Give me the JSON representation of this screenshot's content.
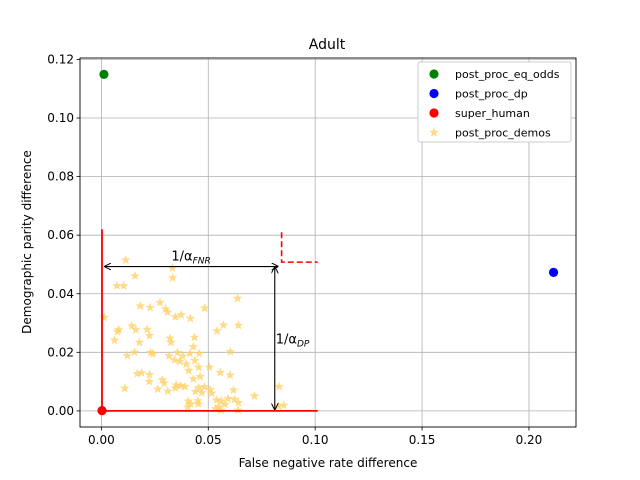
{
  "chart_data": {
    "type": "scatter",
    "title": "Adult",
    "xlabel": "False negative rate difference",
    "ylabel": "Demographic parity difference",
    "xlim": [
      -0.01,
      0.222
    ],
    "ylim": [
      -0.0055,
      0.1205
    ],
    "xticks": [
      0.0,
      0.05,
      0.1,
      0.15,
      0.2
    ],
    "xtick_labels": [
      "0.00",
      "0.05",
      "0.10",
      "0.15",
      "0.20"
    ],
    "yticks": [
      0.0,
      0.02,
      0.04,
      0.06,
      0.08,
      0.1,
      0.12
    ],
    "ytick_labels": [
      "0.00",
      "0.02",
      "0.04",
      "0.06",
      "0.08",
      "0.10",
      "0.12"
    ],
    "grid": true,
    "legend_position": "top-right",
    "series": [
      {
        "name": "post_proc_eq_odds",
        "color": "#008000",
        "marker": "circle",
        "points": [
          [
            0.0012,
            0.1149
          ]
        ]
      },
      {
        "name": "post_proc_dp",
        "color": "#0000ff",
        "marker": "circle",
        "points": [
          [
            0.2115,
            0.0473
          ]
        ]
      },
      {
        "name": "super_human",
        "color": "#ff0000",
        "marker": "circle",
        "points": [
          [
            0.0003,
            0.0001
          ]
        ]
      },
      {
        "name": "post_proc_demos",
        "color": "#ffd166",
        "marker": "star",
        "points": [
          [
            0.0114,
            0.0515
          ],
          [
            0.0157,
            0.0461
          ],
          [
            0.0332,
            0.0488
          ],
          [
            0.0333,
            0.0454
          ],
          [
            0.0073,
            0.0427
          ],
          [
            0.0104,
            0.0427
          ],
          [
            0.0637,
            0.0384
          ],
          [
            0.0182,
            0.0358
          ],
          [
            0.0228,
            0.0353
          ],
          [
            0.0274,
            0.037
          ],
          [
            0.03,
            0.0348
          ],
          [
            0.031,
            0.0337
          ],
          [
            0.0346,
            0.0321
          ],
          [
            0.0373,
            0.0328
          ],
          [
            0.0416,
            0.0316
          ],
          [
            0.0483,
            0.0351
          ],
          [
            0.0013,
            0.0319
          ],
          [
            0.0541,
            0.0273
          ],
          [
            0.0571,
            0.0293
          ],
          [
            0.0641,
            0.0292
          ],
          [
            0.0142,
            0.029
          ],
          [
            0.0161,
            0.0277
          ],
          [
            0.0081,
            0.0277
          ],
          [
            0.0075,
            0.0271
          ],
          [
            0.0214,
            0.0278
          ],
          [
            0.0225,
            0.0257
          ],
          [
            0.0321,
            0.0248
          ],
          [
            0.0326,
            0.0234
          ],
          [
            0.0435,
            0.0251
          ],
          [
            0.0178,
            0.0234
          ],
          [
            0.0062,
            0.0241
          ],
          [
            0.043,
            0.0219
          ],
          [
            0.023,
            0.0199
          ],
          [
            0.0121,
            0.0189
          ],
          [
            0.0155,
            0.02
          ],
          [
            0.0317,
            0.0188
          ],
          [
            0.0356,
            0.0199
          ],
          [
            0.038,
            0.0187
          ],
          [
            0.0414,
            0.0196
          ],
          [
            0.0457,
            0.0196
          ],
          [
            0.0603,
            0.0202
          ],
          [
            0.0241,
            0.0195
          ],
          [
            0.0342,
            0.0174
          ],
          [
            0.0367,
            0.0169
          ],
          [
            0.0397,
            0.016
          ],
          [
            0.0437,
            0.0172
          ],
          [
            0.0455,
            0.0149
          ],
          [
            0.0505,
            0.0149
          ],
          [
            0.0408,
            0.0138
          ],
          [
            0.0188,
            0.013
          ],
          [
            0.0168,
            0.0127
          ],
          [
            0.0225,
            0.0124
          ],
          [
            0.0462,
            0.0117
          ],
          [
            0.0556,
            0.0131
          ],
          [
            0.0602,
            0.0122
          ],
          [
            0.0285,
            0.0106
          ],
          [
            0.043,
            0.0109
          ],
          [
            0.0224,
            0.01
          ],
          [
            0.0293,
            0.0095
          ],
          [
            0.035,
            0.0088
          ],
          [
            0.0372,
            0.0086
          ],
          [
            0.0346,
            0.0078
          ],
          [
            0.0391,
            0.0083
          ],
          [
            0.0456,
            0.0079
          ],
          [
            0.0482,
            0.0082
          ],
          [
            0.0509,
            0.0073
          ],
          [
            0.0618,
            0.0071
          ],
          [
            0.0109,
            0.0077
          ],
          [
            0.0264,
            0.0074
          ],
          [
            0.0311,
            0.0067
          ],
          [
            0.044,
            0.0066
          ],
          [
            0.047,
            0.0062
          ],
          [
            0.0516,
            0.006
          ],
          [
            0.0716,
            0.0051
          ],
          [
            0.0831,
            0.0083
          ],
          [
            0.0538,
            0.0037
          ],
          [
            0.0561,
            0.0034
          ],
          [
            0.0592,
            0.0042
          ],
          [
            0.0623,
            0.0039
          ],
          [
            0.0641,
            0.0028
          ],
          [
            0.0451,
            0.0034
          ],
          [
            0.0406,
            0.0033
          ],
          [
            0.0418,
            0.0024
          ],
          [
            0.0454,
            0.0024
          ],
          [
            0.0403,
            0.0013
          ],
          [
            0.0548,
            0.0014
          ],
          [
            0.0578,
            0.0022
          ],
          [
            0.0534,
            0.0007
          ],
          [
            0.064,
            0.0002
          ],
          [
            0.0853,
            0.0019
          ],
          [
            0.0828,
            0.0016
          ],
          [
            0.056,
            0.0002
          ]
        ]
      }
    ],
    "annotations": {
      "fnr_label": "1/α",
      "fnr_sub": "FNR",
      "dp_label": "1/α",
      "dp_sub": "DP",
      "fnr_arrow": {
        "x_from": 0.0016,
        "x_to": 0.0826,
        "y": 0.0493
      },
      "dp_arrow": {
        "x": 0.0811,
        "y_from": 0.0491,
        "y_to": 0.0005
      },
      "red_lines": {
        "x_vertical": 0.0003,
        "y_top": 0.062,
        "x_right": 0.1012
      },
      "red_dashed": {
        "x": 0.0843,
        "y_top": 0.061,
        "y_corner": 0.0508,
        "x_end": 0.1012
      }
    }
  }
}
